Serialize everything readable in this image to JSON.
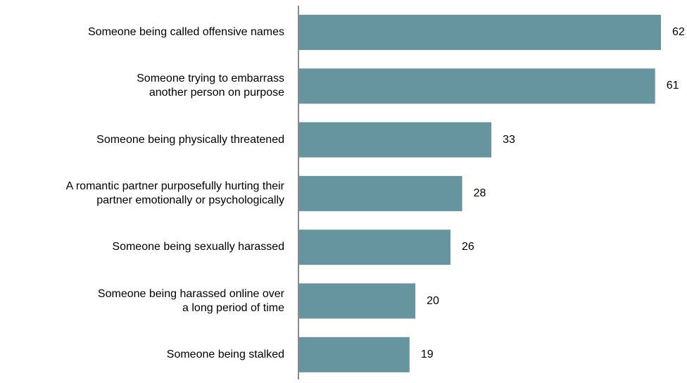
{
  "chart_data": {
    "type": "bar",
    "orientation": "horizontal",
    "categories": [
      [
        "Someone being called offensive names"
      ],
      [
        "Someone trying to embarrass",
        "another person on purpose"
      ],
      [
        "Someone being physically threatened"
      ],
      [
        "A romantic partner purposefully hurting their",
        "partner emotionally or psychologically"
      ],
      [
        "Someone being sexually harassed"
      ],
      [
        "Someone being harassed online over",
        "a long period of time"
      ],
      [
        "Someone being stalked"
      ]
    ],
    "values": [
      62,
      61,
      33,
      28,
      26,
      20,
      19
    ],
    "xlim": [
      0,
      62
    ],
    "bar_color": "#66959f",
    "axis_color": "#8a8a8a",
    "grid": false,
    "legend": "none"
  }
}
